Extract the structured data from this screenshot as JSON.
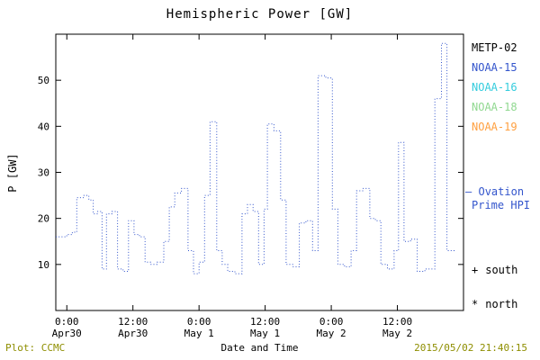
{
  "title": "Hemispheric Power [GW]",
  "colors": {
    "axis": "#000000",
    "trace": "#3355cc",
    "footer": "#8e8e00"
  },
  "legend": {
    "items": [
      {
        "label": "METP-02",
        "color": "#000000"
      },
      {
        "label": "NOAA-15",
        "color": "#3355cc"
      },
      {
        "label": "NOAA-16",
        "color": "#33ccdd"
      },
      {
        "label": "NOAA-18",
        "color": "#90d890"
      },
      {
        "label": "NOAA-19",
        "color": "#ffa040"
      }
    ]
  },
  "annotations": {
    "ovation": {
      "marker": "—",
      "line1": "Ovation",
      "line2": "Prime HPI",
      "color": "#3355cc"
    },
    "south": {
      "marker": "+",
      "label": "south"
    },
    "north": {
      "marker": "*",
      "label": "north"
    }
  },
  "footer": {
    "left": "Plot: CCMC",
    "right": "2015/05/02 21:40:15",
    "color": "#8e8e00"
  },
  "chart_data": {
    "type": "line",
    "style": "step-dotted",
    "title": "Hemispheric Power [GW]",
    "xlabel": "Date and Time",
    "ylabel": "P [GW]",
    "ylim": [
      0,
      60
    ],
    "xlim_hours": [
      -2,
      72
    ],
    "grid": false,
    "legend_position": "right-outside",
    "y_ticks": [
      10,
      20,
      30,
      40,
      50
    ],
    "x_ticks": [
      {
        "hour": 0,
        "time": "0:00",
        "date": "Apr30"
      },
      {
        "hour": 12,
        "time": "12:00",
        "date": "Apr30"
      },
      {
        "hour": 24,
        "time": "0:00",
        "date": "May 1"
      },
      {
        "hour": 36,
        "time": "12:00",
        "date": "May 1"
      },
      {
        "hour": 48,
        "time": "0:00",
        "date": "May 2"
      },
      {
        "hour": 60,
        "time": "12:00",
        "date": "May 2"
      }
    ],
    "series": [
      {
        "name": "Ovation Prime HPI",
        "color": "#3355cc",
        "units": "GW",
        "x_units": "hours since Apr30 00:00",
        "points": [
          [
            -2,
            16
          ],
          [
            0,
            16.5
          ],
          [
            1,
            17
          ],
          [
            1.8,
            24.5
          ],
          [
            3,
            25
          ],
          [
            4,
            24
          ],
          [
            4.8,
            21
          ],
          [
            5.6,
            21.5
          ],
          [
            6.4,
            9
          ],
          [
            7.2,
            21
          ],
          [
            8.2,
            21.5
          ],
          [
            9.2,
            9
          ],
          [
            10.2,
            8.5
          ],
          [
            11.2,
            19.5
          ],
          [
            12.2,
            16.5
          ],
          [
            13.2,
            16
          ],
          [
            14.2,
            10.5
          ],
          [
            15.2,
            10
          ],
          [
            16.4,
            10.5
          ],
          [
            17.6,
            15
          ],
          [
            18.6,
            22.5
          ],
          [
            19.6,
            25.5
          ],
          [
            20.8,
            26.5
          ],
          [
            22,
            13
          ],
          [
            23,
            8
          ],
          [
            24,
            10.5
          ],
          [
            25,
            25
          ],
          [
            26,
            41
          ],
          [
            27.2,
            13
          ],
          [
            28.2,
            10
          ],
          [
            29.2,
            8.5
          ],
          [
            30.5,
            8
          ],
          [
            31.8,
            21
          ],
          [
            32.8,
            23
          ],
          [
            33.8,
            21.5
          ],
          [
            34.8,
            10
          ],
          [
            35.8,
            22
          ],
          [
            36.4,
            40.5
          ],
          [
            37.6,
            39
          ],
          [
            38.8,
            24
          ],
          [
            39.8,
            10
          ],
          [
            41,
            9.5
          ],
          [
            42.2,
            19
          ],
          [
            43.4,
            19.5
          ],
          [
            44.6,
            13
          ],
          [
            45.6,
            51
          ],
          [
            47,
            50.5
          ],
          [
            48.2,
            22
          ],
          [
            49.2,
            10
          ],
          [
            50.4,
            9.5
          ],
          [
            51.6,
            13
          ],
          [
            52.6,
            26
          ],
          [
            53.8,
            26.5
          ],
          [
            55,
            20
          ],
          [
            56,
            19.5
          ],
          [
            57,
            10
          ],
          [
            58.2,
            9
          ],
          [
            59.4,
            13
          ],
          [
            60.2,
            36.5
          ],
          [
            61.2,
            15
          ],
          [
            62.4,
            15.5
          ],
          [
            63.6,
            8.5
          ],
          [
            65,
            9
          ],
          [
            66.8,
            46
          ],
          [
            68,
            58
          ],
          [
            69,
            13
          ],
          [
            70.5,
            13
          ]
        ]
      }
    ]
  }
}
